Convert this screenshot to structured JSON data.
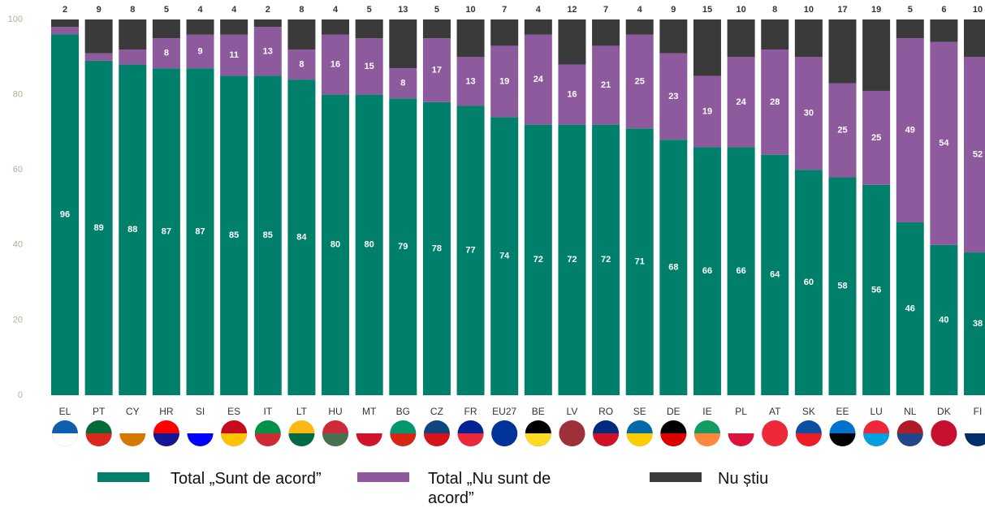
{
  "chart_data": {
    "type": "stacked_bar",
    "categories": [
      "EL",
      "PT",
      "CY",
      "HR",
      "SI",
      "ES",
      "IT",
      "LT",
      "HU",
      "MT",
      "BG",
      "CZ",
      "FR",
      "EU27",
      "BE",
      "LV",
      "RO",
      "SE",
      "DE",
      "IE",
      "PL",
      "AT",
      "SK",
      "EE",
      "LU",
      "NL",
      "DK",
      "FI"
    ],
    "series": [
      {
        "name": "Total „Sunt de acord”",
        "color": "#00806a",
        "values": [
          96,
          89,
          88,
          87,
          87,
          85,
          85,
          84,
          80,
          80,
          79,
          78,
          77,
          74,
          72,
          72,
          72,
          71,
          68,
          66,
          66,
          64,
          60,
          58,
          56,
          46,
          40,
          38
        ]
      },
      {
        "name": "Total „Nu sunt de acord”",
        "color": "#8e5a9e",
        "values": [
          2,
          2,
          4,
          8,
          9,
          11,
          13,
          8,
          16,
          15,
          8,
          17,
          13,
          19,
          24,
          16,
          21,
          25,
          23,
          19,
          24,
          28,
          30,
          25,
          25,
          49,
          54,
          52
        ],
        "value_labels": [
          null,
          null,
          null,
          "8",
          "9",
          "11",
          "13",
          "8",
          "16",
          "15",
          "8",
          "17",
          "13",
          "19",
          "24",
          "16",
          "21",
          "25",
          "23",
          "19",
          "24",
          "28",
          "30",
          "25",
          "25",
          "49",
          "54",
          "52"
        ]
      },
      {
        "name": "Nu știu",
        "color": "#3a3a3a",
        "values": [
          2,
          9,
          8,
          5,
          4,
          4,
          2,
          8,
          4,
          5,
          13,
          5,
          10,
          7,
          4,
          12,
          7,
          4,
          9,
          15,
          10,
          8,
          10,
          17,
          19,
          5,
          6,
          10
        ]
      }
    ],
    "ylim": [
      0,
      100
    ],
    "yticks": [
      0,
      20,
      40,
      60,
      80,
      100
    ]
  }
}
